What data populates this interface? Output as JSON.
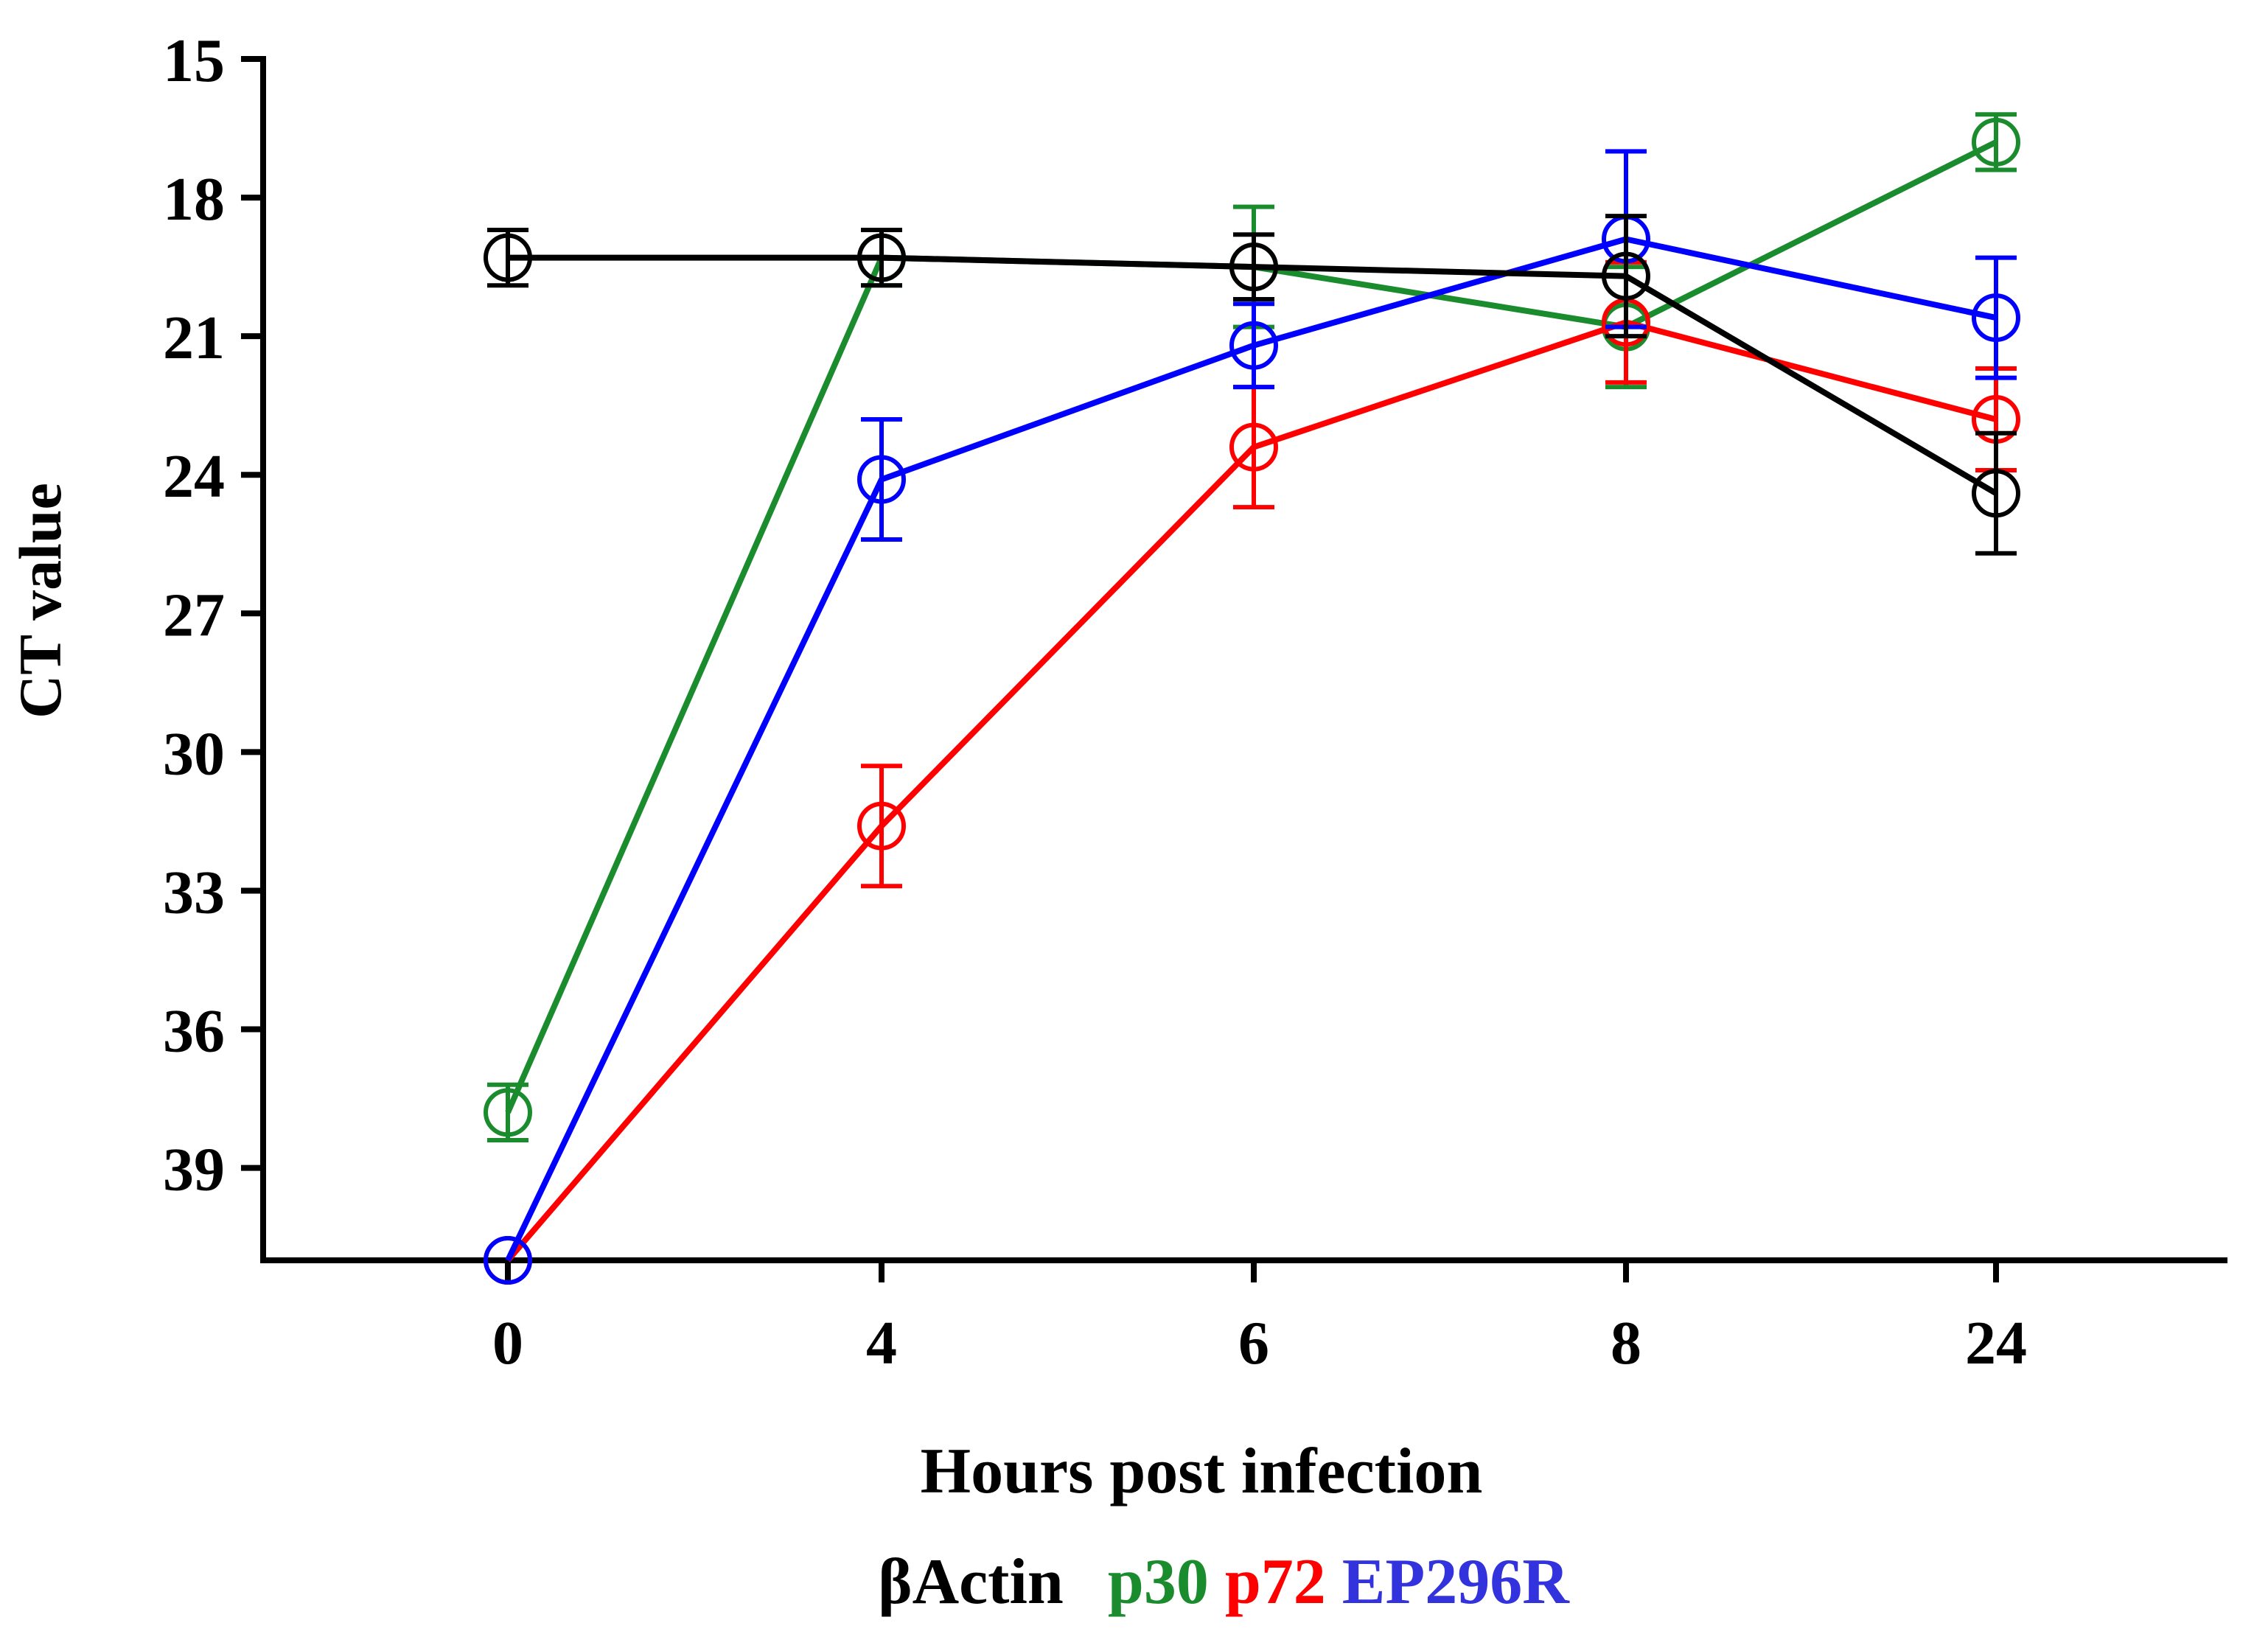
{
  "chart_data": {
    "type": "line",
    "title": "",
    "xlabel": "Hours post infection",
    "ylabel": "CT value",
    "categories": [
      "0",
      "4",
      "6",
      "8",
      "24"
    ],
    "y_ticks": [
      "15",
      "18",
      "21",
      "24",
      "27",
      "30",
      "33",
      "36",
      "39"
    ],
    "ylim": [
      15,
      41
    ],
    "y_inverted": true,
    "grid": false,
    "error_bars": true,
    "legend_position": "bottom-center",
    "series": [
      {
        "name": "p30",
        "color": "#1a8c2e",
        "values": [
          37.8,
          19.3,
          19.5,
          20.8,
          16.8
        ],
        "errors": [
          0.6,
          0.6,
          1.3,
          1.3,
          0.6
        ]
      },
      {
        "name": "p72",
        "color": "#ff0000",
        "values": [
          41,
          31.6,
          23.4,
          20.7,
          22.8
        ],
        "errors": [
          0,
          1.3,
          1.3,
          1.3,
          1.1
        ]
      },
      {
        "name": "EP296R",
        "color": "#0000ff",
        "values": [
          41,
          24.1,
          21.2,
          18.9,
          20.6
        ],
        "errors": [
          0,
          1.3,
          0.9,
          1.9,
          1.3
        ]
      },
      {
        "name": "βActin",
        "color": "#000000",
        "values": [
          19.3,
          19.3,
          19.5,
          19.7,
          24.4
        ],
        "errors": [
          0.6,
          0.6,
          0.7,
          1.3,
          1.3
        ]
      }
    ],
    "legend": [
      {
        "label": "βActin",
        "color": "#000000"
      },
      {
        "label": "p30",
        "color": "#1a8c2e"
      },
      {
        "label": "p72",
        "color": "#ff0000"
      },
      {
        "label": "EP296R",
        "color": "#3333dd"
      }
    ]
  }
}
